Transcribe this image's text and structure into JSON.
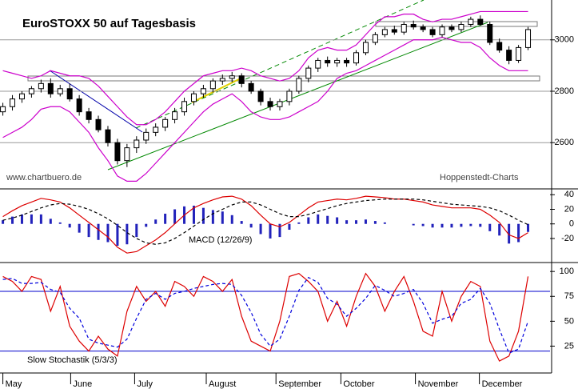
{
  "chart_data": [
    {
      "type": "candlestick",
      "title": "EuroSTOXX 50 auf Tagesbasis",
      "source": "www.chartbuero.de",
      "credit": "Hoppenstedt-Charts",
      "open": [
        2720,
        2740,
        2770,
        2790,
        2810,
        2830,
        2790,
        2810,
        2770,
        2720,
        2690,
        2650,
        2600,
        2530,
        2580,
        2610,
        2640,
        2660,
        2690,
        2720,
        2760,
        2790,
        2810,
        2840,
        2850,
        2860,
        2830,
        2800,
        2760,
        2740,
        2760,
        2800,
        2850,
        2890,
        2920,
        2910,
        2920,
        2910,
        2950,
        2990,
        3020,
        3040,
        3030,
        3060,
        3050,
        3040,
        3020,
        3050,
        3040,
        3060,
        3080,
        3060,
        2990,
        2960,
        2920,
        2970
      ],
      "high": [
        2755,
        2785,
        2800,
        2820,
        2845,
        2850,
        2825,
        2830,
        2785,
        2735,
        2705,
        2665,
        2615,
        2595,
        2625,
        2655,
        2675,
        2700,
        2735,
        2775,
        2800,
        2825,
        2850,
        2865,
        2875,
        2870,
        2840,
        2810,
        2775,
        2770,
        2810,
        2860,
        2900,
        2930,
        2935,
        2930,
        2930,
        2960,
        3000,
        3030,
        3050,
        3055,
        3070,
        3075,
        3060,
        3050,
        3060,
        3060,
        3070,
        3090,
        3095,
        3070,
        3005,
        2975,
        2980,
        3050
      ],
      "low": [
        2705,
        2725,
        2755,
        2775,
        2795,
        2775,
        2780,
        2760,
        2705,
        2675,
        2640,
        2585,
        2515,
        2505,
        2560,
        2595,
        2625,
        2645,
        2675,
        2705,
        2745,
        2775,
        2795,
        2825,
        2835,
        2815,
        2790,
        2745,
        2725,
        2725,
        2745,
        2790,
        2835,
        2875,
        2895,
        2895,
        2895,
        2900,
        2940,
        2980,
        3010,
        3020,
        3020,
        3040,
        3030,
        3010,
        3010,
        3030,
        3030,
        3050,
        3055,
        2980,
        2950,
        2905,
        2910,
        2960
      ],
      "close": [
        2740,
        2770,
        2790,
        2810,
        2830,
        2790,
        2810,
        2770,
        2720,
        2690,
        2650,
        2600,
        2530,
        2580,
        2610,
        2640,
        2660,
        2690,
        2720,
        2760,
        2790,
        2810,
        2840,
        2850,
        2860,
        2830,
        2800,
        2760,
        2740,
        2760,
        2800,
        2850,
        2890,
        2920,
        2910,
        2920,
        2910,
        2950,
        2990,
        3020,
        3040,
        3030,
        3060,
        3050,
        3040,
        3020,
        3050,
        3040,
        3060,
        3080,
        3060,
        2990,
        2960,
        2920,
        2970,
        3040
      ],
      "upper_band": [
        2880,
        2870,
        2860,
        2850,
        2860,
        2880,
        2870,
        2860,
        2860,
        2850,
        2820,
        2780,
        2740,
        2700,
        2670,
        2670,
        2690,
        2720,
        2760,
        2800,
        2830,
        2860,
        2870,
        2880,
        2880,
        2890,
        2880,
        2860,
        2850,
        2840,
        2850,
        2880,
        2930,
        2960,
        2970,
        2960,
        2960,
        2980,
        3020,
        3060,
        3090,
        3090,
        3100,
        3100,
        3080,
        3070,
        3080,
        3080,
        3090,
        3100,
        3110,
        3110,
        3110,
        3110,
        3110,
        3110
      ],
      "lower_band": [
        2620,
        2640,
        2660,
        2690,
        2730,
        2740,
        2740,
        2720,
        2680,
        2640,
        2580,
        2530,
        2470,
        2450,
        2450,
        2480,
        2520,
        2560,
        2600,
        2640,
        2680,
        2720,
        2750,
        2770,
        2790,
        2760,
        2720,
        2700,
        2690,
        2690,
        2700,
        2720,
        2740,
        2760,
        2800,
        2850,
        2870,
        2880,
        2900,
        2920,
        2940,
        2960,
        2980,
        3000,
        3000,
        3000,
        3010,
        3000,
        2990,
        2990,
        2970,
        2930,
        2900,
        2880,
        2880,
        2880
      ],
      "band_color": "#cc00cc",
      "ylim": [
        2420,
        3155
      ],
      "yticks": [
        2600,
        2800,
        3000
      ],
      "xlim": [
        -0.3,
        57.3
      ]
    },
    {
      "type": "macd",
      "label": "MACD (12/26/9)",
      "series": [
        {
          "color": "#dd0000",
          "values": [
            10,
            18,
            25,
            30,
            35,
            33,
            30,
            22,
            12,
            2,
            -8,
            -18,
            -32,
            -40,
            -38,
            -30,
            -22,
            -12,
            0,
            12,
            22,
            28,
            33,
            37,
            38,
            34,
            25,
            12,
            0,
            -4,
            2,
            12,
            22,
            30,
            32,
            34,
            33,
            35,
            38,
            37,
            36,
            34,
            34,
            32,
            30,
            26,
            24,
            22,
            22,
            22,
            20,
            12,
            2,
            -15,
            -20,
            -12
          ]
        },
        {
          "color": "#000000",
          "dashed": true,
          "values": [
            5,
            8,
            12,
            17,
            22,
            26,
            28,
            27,
            24,
            20,
            14,
            7,
            -2,
            -12,
            -20,
            -26,
            -28,
            -26,
            -20,
            -12,
            -3,
            6,
            14,
            20,
            26,
            30,
            30,
            26,
            20,
            14,
            10,
            10,
            13,
            17,
            21,
            25,
            28,
            30,
            32,
            33,
            34,
            34,
            34,
            34,
            33,
            31,
            29,
            27,
            26,
            25,
            24,
            22,
            18,
            12,
            5,
            -1
          ]
        }
      ],
      "histogram": {
        "color": "#2222bb",
        "values": [
          5,
          10,
          13,
          13,
          13,
          7,
          2,
          -5,
          -12,
          -18,
          -22,
          -25,
          -30,
          -28,
          -18,
          -4,
          6,
          14,
          20,
          24,
          25,
          22,
          19,
          17,
          12,
          4,
          -5,
          -14,
          -20,
          -18,
          -8,
          2,
          9,
          13,
          11,
          9,
          5,
          5,
          6,
          4,
          2,
          0,
          0,
          -2,
          -3,
          -5,
          -5,
          -5,
          -4,
          -3,
          -4,
          -10,
          -16,
          -27,
          -25,
          -11
        ]
      },
      "ylim": [
        -53,
        48
      ],
      "yticks": [
        -20,
        0,
        20,
        40
      ],
      "xlim": [
        -0.3,
        57.3
      ]
    },
    {
      "type": "stochastic",
      "label": "Slow Stochastik (5/3/3)",
      "series": [
        {
          "color": "#dd0000",
          "values": [
            95,
            90,
            80,
            95,
            92,
            60,
            85,
            45,
            30,
            20,
            35,
            22,
            15,
            60,
            85,
            70,
            80,
            65,
            90,
            85,
            75,
            95,
            90,
            80,
            92,
            55,
            30,
            25,
            20,
            50,
            95,
            98,
            90,
            80,
            50,
            70,
            45,
            75,
            98,
            85,
            60,
            80,
            95,
            70,
            40,
            35,
            80,
            50,
            75,
            90,
            85,
            30,
            10,
            15,
            40,
            95
          ]
        },
        {
          "color": "#0000dd",
          "dashed": true,
          "values": [
            92,
            93,
            88,
            88,
            89,
            82,
            79,
            63,
            53,
            32,
            28,
            26,
            24,
            32,
            53,
            72,
            78,
            72,
            78,
            80,
            83,
            85,
            87,
            88,
            87,
            76,
            59,
            37,
            25,
            32,
            55,
            81,
            94,
            89,
            73,
            67,
            55,
            63,
            73,
            86,
            81,
            75,
            78,
            82,
            68,
            48,
            52,
            55,
            68,
            72,
            83,
            68,
            42,
            18,
            22,
            50
          ]
        }
      ],
      "levels": [
        20,
        80
      ],
      "level_color": "#0000cc",
      "ylim": [
        -2,
        109
      ],
      "yticks": [
        25,
        50,
        75,
        100
      ],
      "xlim": [
        -0.3,
        57.3
      ],
      "xticks": [
        {
          "value": 0,
          "label": "May"
        },
        {
          "value": 7.1,
          "label": "June"
        },
        {
          "value": 13.8,
          "label": "July"
        },
        {
          "value": 21.3,
          "label": "August"
        },
        {
          "value": 28.6,
          "label": "September"
        },
        {
          "value": 35.4,
          "label": "October"
        },
        {
          "value": 43.2,
          "label": "November"
        },
        {
          "value": 49.9,
          "label": "December"
        }
      ]
    }
  ]
}
